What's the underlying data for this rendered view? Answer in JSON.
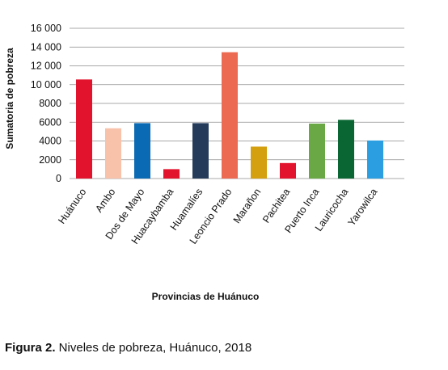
{
  "chart_data": {
    "type": "bar",
    "categories": [
      "Huánuco",
      "Ambo",
      "Dos de Mayo",
      "Huacaybamba",
      "Huamalíes",
      "Leoncio Prado",
      "Marañon",
      "Pachitea",
      "Puerto Inca",
      "Lauricocha",
      "Yarowilca"
    ],
    "values": [
      10550,
      5350,
      5900,
      1000,
      5900,
      13450,
      3400,
      1650,
      5850,
      6250,
      4050
    ],
    "colors": [
      "#e2142d",
      "#f7c1aa",
      "#0a6ab3",
      "#e2142d",
      "#243c5a",
      "#ec6a52",
      "#d5a00f",
      "#e2142d",
      "#69a844",
      "#0a6632",
      "#2a9ee0"
    ],
    "ylim": [
      0,
      16000
    ],
    "yticks": [
      0,
      2000,
      4000,
      6000,
      8000,
      10000,
      12000,
      14000,
      16000
    ],
    "ytick_labels": [
      "0",
      "2000",
      "4000",
      "6000",
      "8000",
      "10 000",
      "12 000",
      "14 000",
      "16 000"
    ],
    "xlabel": "Provincias de Huánuco",
    "ylabel": "Sumatoria de pobreza",
    "grid": true,
    "gridline_color": "#8c8c8c"
  },
  "caption": {
    "label": "Figura 2.",
    "text": " Niveles de pobreza, Huánuco, 2018"
  }
}
